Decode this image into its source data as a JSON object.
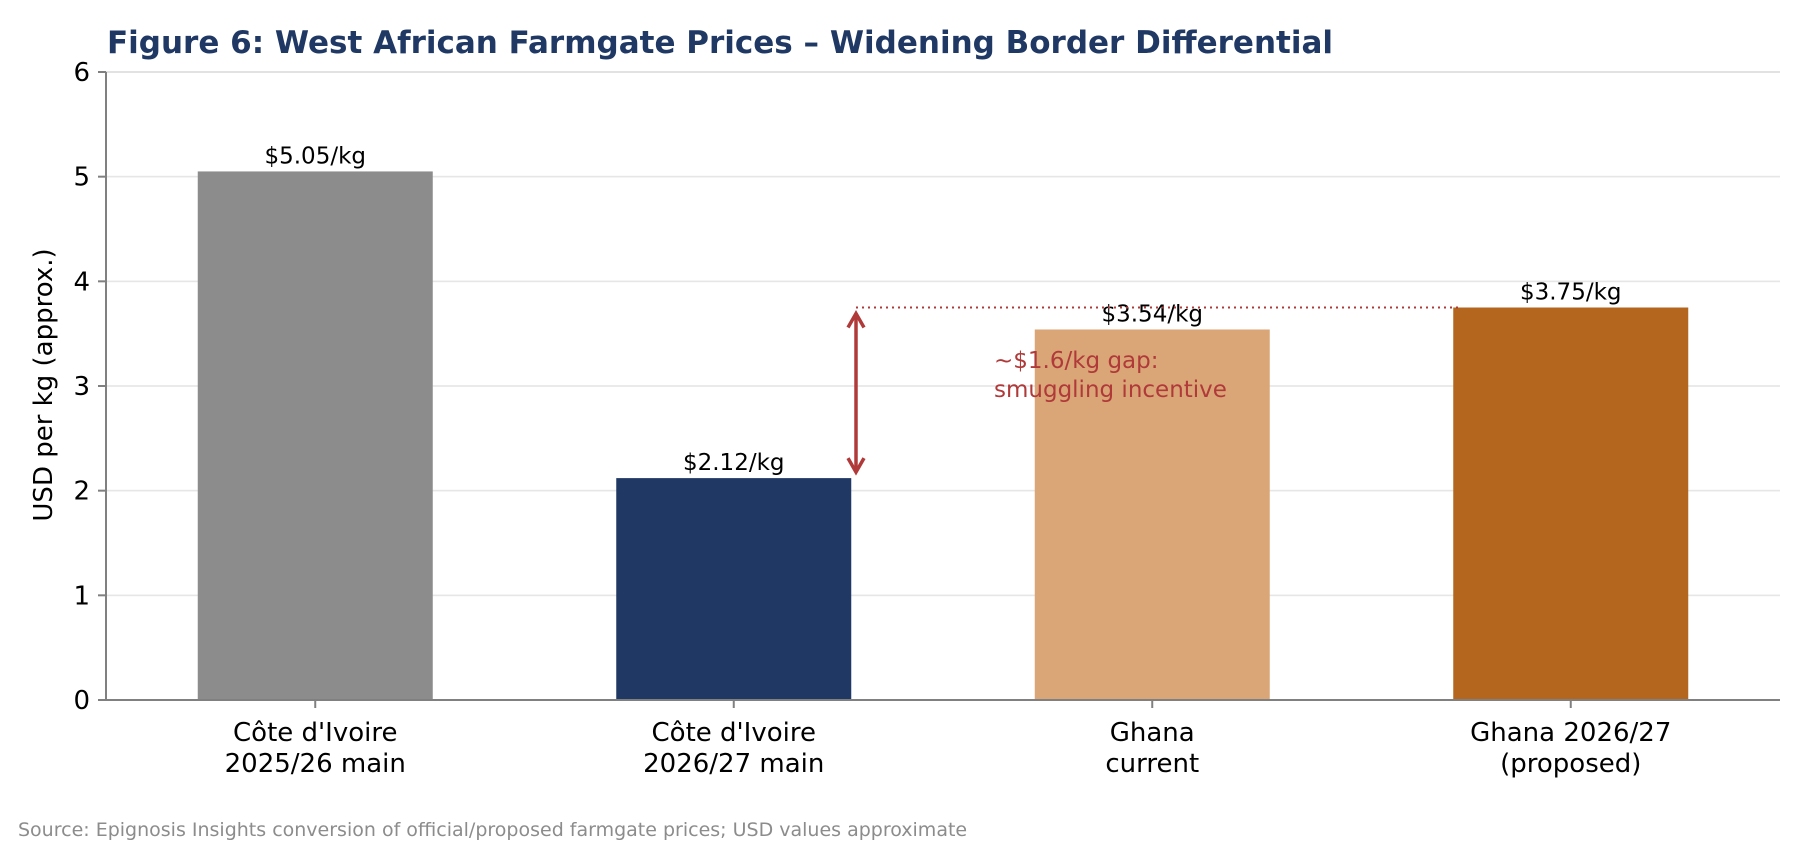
{
  "chart_data": {
    "type": "bar",
    "title": "Figure 6: West African Farmgate Prices – Widening Border Differential",
    "ylabel": "USD per kg (approx.)",
    "xlabel": "",
    "ylim": [
      0,
      6
    ],
    "yticks": [
      0,
      1,
      2,
      3,
      4,
      5,
      6
    ],
    "grid": true,
    "categories": [
      [
        "Côte d'Ivoire",
        "2025/26 main"
      ],
      [
        "Côte d'Ivoire",
        "2026/27 main"
      ],
      [
        "Ghana",
        "current"
      ],
      [
        "Ghana 2026/27",
        "(proposed)"
      ]
    ],
    "values": [
      5.05,
      2.12,
      3.54,
      3.75
    ],
    "value_labels": [
      "$5.05/kg",
      "$2.12/kg",
      "$3.54/kg",
      "$3.75/kg"
    ],
    "colors": [
      "#8c8c8c",
      "#203864",
      "#dba677",
      "#b4661f"
    ],
    "annotation": {
      "lines": [
        "~$1.6/kg gap:",
        "smuggling incentive"
      ],
      "from_value": 2.12,
      "to_value": 3.75,
      "color": "#b03a3a"
    }
  },
  "source": "Source: Epignosis Insights conversion of official/proposed farmgate prices; USD values approximate"
}
